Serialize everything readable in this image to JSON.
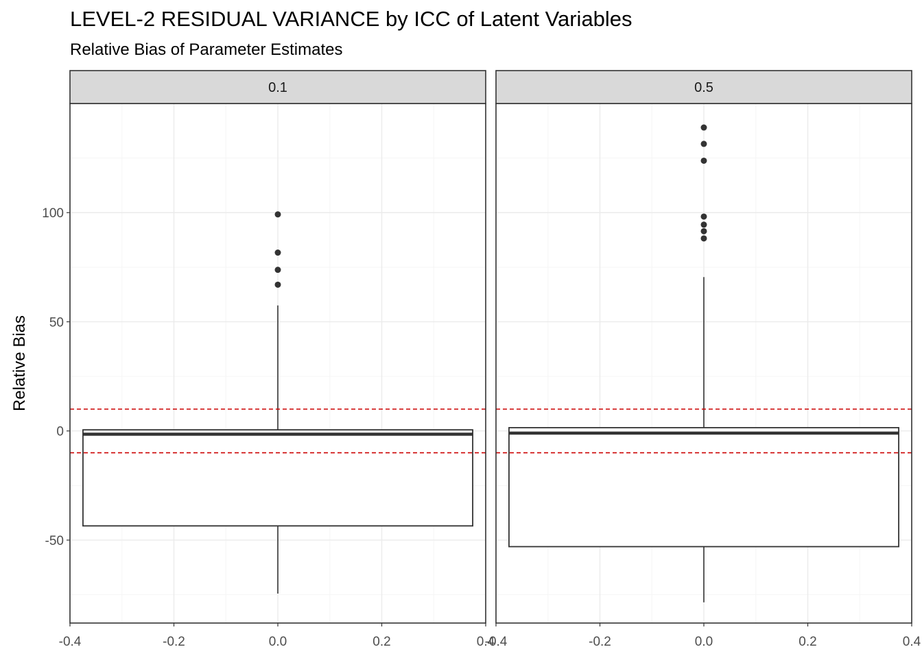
{
  "chart_data": {
    "type": "boxplot",
    "title": "LEVEL-2 RESIDUAL VARIANCE by ICC of Latent Variables",
    "subtitle": "Relative Bias of Parameter Estimates",
    "ylabel": "Relative Bias",
    "xlabel": "",
    "xlim": [
      -0.4,
      0.4
    ],
    "ylim": [
      -88,
      150
    ],
    "x_ticks": [
      -0.4,
      -0.2,
      0.0,
      0.2,
      0.4
    ],
    "x_tick_labels": [
      "-0.4",
      "-0.2",
      "0.0",
      "0.2",
      "0.4"
    ],
    "y_ticks": [
      -50,
      0,
      50,
      100
    ],
    "y_tick_labels": [
      "-50",
      "0",
      "50",
      "100"
    ],
    "y_minor_ticks": [
      -75,
      -25,
      25,
      75,
      125
    ],
    "x_minor_ticks": [
      -0.3,
      -0.1,
      0.1,
      0.3
    ],
    "grid": true,
    "reference_lines": [
      {
        "y": 10,
        "style": "dashed",
        "color": "#cc0000"
      },
      {
        "y": -10,
        "style": "dashed",
        "color": "#cc0000"
      }
    ],
    "box_x_range": [
      -0.375,
      0.375
    ],
    "facets": [
      {
        "label": "0.1",
        "whisker_low": -74.5,
        "q1": -43.5,
        "median": -1.5,
        "q3": 0.5,
        "whisker_high": 57.5,
        "outliers": [
          99.2,
          81.7,
          73.8,
          67.0
        ]
      },
      {
        "label": "0.5",
        "whisker_low": -78.5,
        "q1": -53.0,
        "median": -1.0,
        "q3": 1.5,
        "whisker_high": 70.5,
        "outliers": [
          139.0,
          131.5,
          123.8,
          98.2,
          94.5,
          91.5,
          88.2
        ]
      }
    ],
    "colors": {
      "panel_border": "#333333",
      "grid_major": "#ebebeb",
      "grid_minor": "#f5f5f5",
      "strip_fill": "#d9d9d9",
      "box_line": "#333333",
      "outlier": "#333333",
      "reference_line": "#cc0000"
    }
  }
}
